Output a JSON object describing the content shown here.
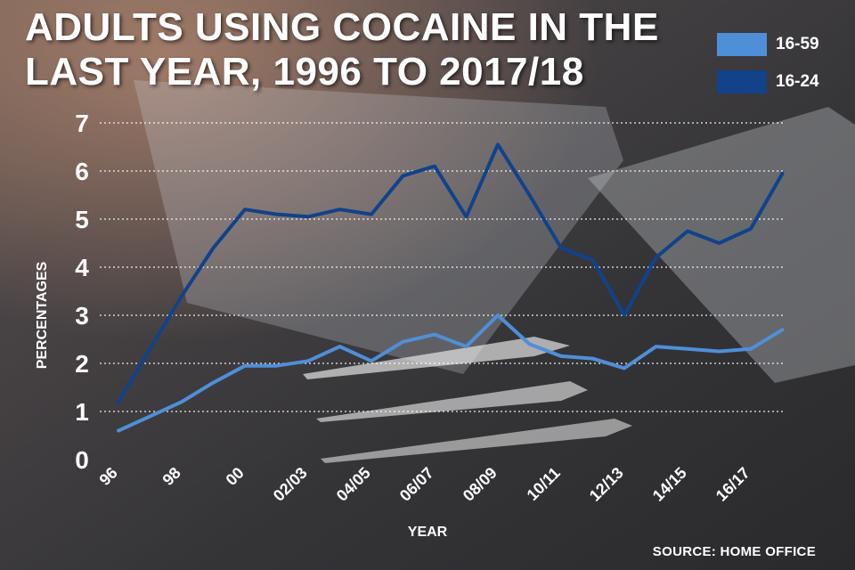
{
  "title": "Adults using cocaine in the last year, 1996 to 2017/18",
  "source": "SOURCE: HOME OFFICE",
  "colors": {
    "series_16_59": "#4f8fd8",
    "series_16_24": "#11428a"
  },
  "chart_data": {
    "type": "line",
    "xlabel": "YEAR",
    "ylabel": "PERCENTAGES",
    "ylim": [
      0,
      7
    ],
    "yticks": [
      0,
      1,
      2,
      3,
      4,
      5,
      6,
      7
    ],
    "grid": "horizontal dotted",
    "legend_position": "top-right",
    "tick_labels": [
      "96",
      "98",
      "00",
      "02/03",
      "04/05",
      "06/07",
      "08/09",
      "10/11",
      "12/13",
      "14/15",
      "16/17"
    ],
    "x": [
      "1996",
      "1997",
      "1998",
      "1999",
      "2000",
      "2001/02",
      "2002/03",
      "2003/04",
      "2004/05",
      "2005/06",
      "2006/07",
      "2007/08",
      "2008/09",
      "2009/10",
      "2010/11",
      "2011/12",
      "2012/13",
      "2013/14",
      "2014/15",
      "2015/16",
      "2016/17",
      "2017/18"
    ],
    "series": [
      {
        "name": "16-59",
        "values": [
          0.6,
          0.9,
          1.2,
          1.6,
          1.95,
          1.95,
          2.05,
          2.35,
          2.05,
          2.45,
          2.6,
          2.35,
          3.0,
          2.4,
          2.15,
          2.1,
          1.9,
          2.35,
          2.3,
          2.25,
          2.3,
          2.7
        ]
      },
      {
        "name": "16-24",
        "values": [
          1.2,
          2.3,
          3.4,
          4.4,
          5.2,
          5.1,
          5.05,
          5.2,
          5.1,
          5.9,
          6.1,
          5.05,
          6.55,
          5.5,
          4.4,
          4.15,
          3.0,
          4.2,
          4.75,
          4.5,
          4.8,
          5.95
        ]
      }
    ]
  }
}
